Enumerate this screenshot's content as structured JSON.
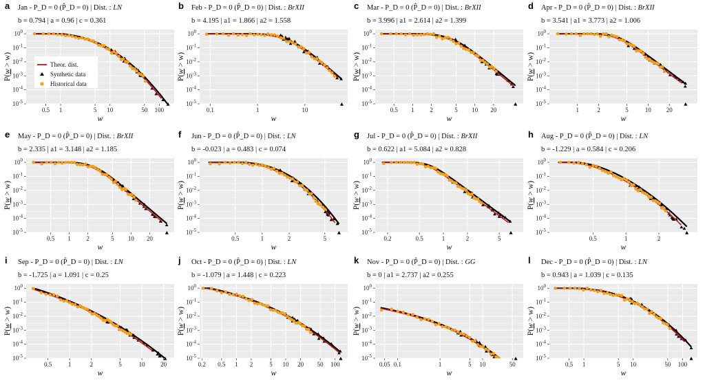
{
  "figure": {
    "ylabel_text": "P(",
    "ylabel_var": "w",
    "ylabel_rest": " > w)",
    "legend": [
      {
        "label": "Theor. dist.",
        "kind": "line",
        "color": "#c0161d"
      },
      {
        "label": "Synthetic data",
        "kind": "triangle",
        "color": "#000000"
      },
      {
        "label": "Historical data",
        "kind": "circle",
        "color": "#f0a21d"
      }
    ]
  },
  "chart_data": [
    {
      "type": "line",
      "letter": "a",
      "month": "Jan - ",
      "pd": "P_D = 0 (P̂_D = 0) |",
      "dist_label": "Dist. : ",
      "dist": "LN",
      "params": "b = 0.794 | a = 0.96 | c = 0.361",
      "xlabel": "w",
      "ylabel": "P(w > w)",
      "xscale": "log",
      "xlim": [
        0.2,
        200
      ],
      "ylim": [
        1e-05,
        2
      ],
      "xticks": [
        "0.5",
        "1",
        "5",
        "10",
        "50",
        "100"
      ],
      "xtick_values": [
        0.5,
        1,
        5,
        10,
        50,
        100
      ],
      "yticks": [
        "10^0",
        "10^-1",
        "10^-2",
        "10^-3",
        "10^-4",
        "10^-5"
      ],
      "model": {
        "family": "LN",
        "b": 0.794,
        "a": 0.96,
        "c": 0.361
      },
      "xmin": 0.28,
      "xmax_theor": 110,
      "xmax_synth": 150,
      "xmax_hist": 52
    },
    {
      "type": "line",
      "letter": "b",
      "month": "Feb - ",
      "pd": "P_D = 0 (P̂_D = 0) |",
      "dist_label": "Dist. : ",
      "dist": "BrXII",
      "params": "b = 4.195 | a1 = 1.866 | a2 = 1.558",
      "xlabel": "w",
      "ylabel": "P(w > w)",
      "xscale": "log",
      "xlim": [
        0.06,
        80
      ],
      "ylim": [
        1e-05,
        2
      ],
      "xticks": [
        "0.1",
        "1",
        "10"
      ],
      "xtick_values": [
        0.1,
        1,
        10
      ],
      "yticks": [
        "10^0",
        "10^-1",
        "10^-2",
        "10^-3",
        "10^-4",
        "10^-5"
      ],
      "model": {
        "family": "BrXII",
        "b": 4.195,
        "a1": 1.866,
        "a2": 1.558
      },
      "xmin": 0.08,
      "xmax_theor": 50,
      "xmax_synth": 60,
      "xmax_hist": 42
    },
    {
      "type": "line",
      "letter": "c",
      "month": "Mar - ",
      "pd": "P_D = 0 (P̂_D = 0) |",
      "dist_label": "Dist. : ",
      "dist": "BrXII",
      "params": "b = 3.996 | a1 = 2.614 | a2 = 1.399",
      "xlabel": "w",
      "ylabel": "P(w > w)",
      "xscale": "log",
      "xlim": [
        0.25,
        60
      ],
      "ylim": [
        1e-05,
        2
      ],
      "xticks": [
        "0.5",
        "1",
        "2",
        "5",
        "10",
        "20"
      ],
      "xtick_values": [
        0.5,
        1,
        2,
        5,
        10,
        20
      ],
      "yticks": [
        "10^0",
        "10^-1",
        "10^-2",
        "10^-3",
        "10^-4",
        "10^-5"
      ],
      "model": {
        "family": "BrXII",
        "b": 3.996,
        "a1": 2.614,
        "a2": 1.399
      },
      "xmin": 0.3,
      "xmax_theor": 42,
      "xmax_synth": 45,
      "xmax_hist": 22
    },
    {
      "type": "line",
      "letter": "d",
      "month": "Apr - ",
      "pd": "P_D = 0 (P̂_D = 0) |",
      "dist_label": "Dist. : ",
      "dist": "BrXII",
      "params": "b = 3.541 | a1 = 3.773 | a2 = 1.006",
      "xlabel": "w",
      "ylabel": "P(w > w)",
      "xscale": "log",
      "xlim": [
        0.4,
        50
      ],
      "ylim": [
        1e-05,
        2
      ],
      "xticks": [
        "1",
        "2",
        "5",
        "10",
        "20"
      ],
      "xtick_values": [
        1,
        2,
        5,
        10,
        20
      ],
      "yticks": [
        "10^0",
        "10^-1",
        "10^-2",
        "10^-3",
        "10^-4",
        "10^-5"
      ],
      "model": {
        "family": "BrXII",
        "b": 3.541,
        "a1": 3.773,
        "a2": 1.006
      },
      "xmin": 0.5,
      "xmax_theor": 30,
      "xmax_synth": 34,
      "xmax_hist": 17
    },
    {
      "type": "line",
      "letter": "e",
      "month": "May - ",
      "pd": "P_D = 0 (P̂_D = 0) |",
      "dist_label": "Dist. : ",
      "dist": "BrXII",
      "params": "b = 2.335 | a1 = 3.148 | a2 = 1.185",
      "xlabel": "w",
      "ylabel": "P(w > w)",
      "xscale": "log",
      "xlim": [
        0.2,
        50
      ],
      "ylim": [
        1e-05,
        2
      ],
      "xticks": [
        "0.5",
        "1",
        "2",
        "5",
        "10",
        "20"
      ],
      "xtick_values": [
        0.5,
        1,
        2,
        5,
        10,
        20
      ],
      "yticks": [
        "10^0",
        "10^-1",
        "10^-2",
        "10^-3",
        "10^-4",
        "10^-5"
      ],
      "model": {
        "family": "BrXII",
        "b": 2.335,
        "a1": 3.148,
        "a2": 1.185
      },
      "xmin": 0.25,
      "xmax_theor": 32,
      "xmax_synth": 38,
      "xmax_hist": 12
    },
    {
      "type": "line",
      "letter": "f",
      "month": "Jun - ",
      "pd": "P_D = 0 (P̂_D = 0) |",
      "dist_label": "Dist. : ",
      "dist": "LN",
      "params": "b = -0.023 | a = 0.483 | c = 0.074",
      "xlabel": "w",
      "ylabel": "P(w > w)",
      "xscale": "log",
      "xlim": [
        0.2,
        9
      ],
      "ylim": [
        1e-05,
        2
      ],
      "xticks": [
        "0.5",
        "1",
        "2",
        "5"
      ],
      "xtick_values": [
        0.5,
        1,
        2,
        5
      ],
      "yticks": [
        "10^0",
        "10^-1",
        "10^-2",
        "10^-3",
        "10^-4",
        "10^-5"
      ],
      "model": {
        "family": "LN",
        "b": -0.023,
        "a": 0.483,
        "c": 0.074
      },
      "xmin": 0.25,
      "xmax_theor": 6.5,
      "xmax_synth": 7.2,
      "xmax_hist": 5
    },
    {
      "type": "line",
      "letter": "g",
      "month": "Jul - ",
      "pd": "P_D = 0 (P̂_D = 0) |",
      "dist_label": "Dist. : ",
      "dist": "BrXII",
      "params": "b = 0.622 | a1 = 5.084 | a2 = 0.828",
      "xlabel": "w",
      "ylabel": "P(w > w)",
      "xscale": "log",
      "xlim": [
        0.14,
        10
      ],
      "ylim": [
        1e-05,
        2
      ],
      "xticks": [
        "0.2",
        "0.5",
        "1",
        "2",
        "5"
      ],
      "xtick_values": [
        0.2,
        0.5,
        1,
        2,
        5
      ],
      "yticks": [
        "10^0",
        "10^-1",
        "10^-2",
        "10^-3",
        "10^-4",
        "10^-5"
      ],
      "model": {
        "family": "BrXII",
        "b": 0.622,
        "a1": 5.084,
        "a2": 0.828
      },
      "xmin": 0.17,
      "xmax_theor": 6.5,
      "xmax_synth": 7,
      "xmax_hist": 3
    },
    {
      "type": "line",
      "letter": "h",
      "month": "Aug - ",
      "pd": "P_D = 0 (P̂_D = 0) |",
      "dist_label": "Dist. : ",
      "dist": "LN",
      "params": "b = -1.229 | a = 0.584 | c = 0.206",
      "xlabel": "w",
      "ylabel": "P(w > w)",
      "xscale": "log",
      "xlim": [
        0.2,
        4.5
      ],
      "ylim": [
        1e-05,
        2
      ],
      "xticks": [
        "0.5",
        "1",
        "2"
      ],
      "xtick_values": [
        0.5,
        1,
        2
      ],
      "yticks": [
        "10^0",
        "10^-1",
        "10^-2",
        "10^-3",
        "10^-4",
        "10^-5"
      ],
      "model": {
        "family": "LN",
        "b": -1.229,
        "a": 0.584,
        "c": 0.206
      },
      "xmin": 0.24,
      "xmax_theor": 3.2,
      "xmax_synth": 3.6,
      "xmax_hist": 2.3
    },
    {
      "type": "line",
      "letter": "i",
      "month": "Sep - ",
      "pd": "P_D = 0 (P̂_D = 0) |",
      "dist_label": "Dist. : ",
      "dist": "LN",
      "params": "b = -1.725 | a = 1.091 | c = 0.25",
      "xlabel": "w",
      "ylabel": "P(w > w)",
      "xscale": "log",
      "xlim": [
        0.25,
        28
      ],
      "ylim": [
        1e-05,
        2
      ],
      "xticks": [
        "0.5",
        "1",
        "2",
        "5",
        "10",
        "20"
      ],
      "xtick_values": [
        0.5,
        1,
        2,
        5,
        10,
        20
      ],
      "yticks": [
        "10^0",
        "10^-1",
        "10^-2",
        "10^-3",
        "10^-4",
        "10^-5"
      ],
      "model": {
        "family": "LN",
        "b": -1.725,
        "a": 1.091,
        "c": 0.25
      },
      "xmin": 0.3,
      "xmax_theor": 14,
      "xmax_synth": 21,
      "xmax_hist": 7
    },
    {
      "type": "line",
      "letter": "j",
      "month": "Oct - ",
      "pd": "P_D = 0 (P̂_D = 0) |",
      "dist_label": "Dist. : ",
      "dist": "LN",
      "params": "b = -1.079 | a = 1.448 | c = 0.223",
      "xlabel": "w",
      "ylabel": "P(w > w)",
      "xscale": "log",
      "xlim": [
        0.18,
        180
      ],
      "ylim": [
        1e-05,
        2
      ],
      "xticks": [
        "0.2",
        "0.5",
        "1",
        "2",
        "5",
        "10",
        "20",
        "50",
        "100"
      ],
      "xtick_values": [
        0.2,
        0.5,
        1,
        2,
        5,
        10,
        20,
        50,
        100
      ],
      "yticks": [
        "10^0",
        "10^-1",
        "10^-2",
        "10^-3",
        "10^-4",
        "10^-5"
      ],
      "model": {
        "family": "LN",
        "b": -1.079,
        "a": 1.448,
        "c": 0.223
      },
      "xmin": 0.2,
      "xmax_theor": 120,
      "xmax_synth": 130,
      "xmax_hist": 32
    },
    {
      "type": "line",
      "letter": "k",
      "month": "Nov - ",
      "pd": "P_D = 0 (P̂_D = 0) |",
      "dist_label": "Dist. : ",
      "dist": "GG",
      "params": "b = 0 | a1 = 2.737 | a2 = 0.255",
      "xlabel": "w",
      "ylabel": "P(w > w)",
      "xscale": "log",
      "xlim": [
        0.03,
        90
      ],
      "ylim": [
        1e-05,
        2
      ],
      "xticks": [
        "0.05",
        "0.1",
        "1",
        "5",
        "10",
        "50"
      ],
      "xtick_values": [
        0.05,
        0.1,
        1,
        5,
        10,
        50
      ],
      "yticks": [
        "10^0",
        "10^-1",
        "10^-2",
        "10^-3",
        "10^-4",
        "10^-5"
      ],
      "model": {
        "family": "GG",
        "b": 0,
        "a1": 2.737,
        "a2": 0.255
      },
      "xmin": 0.04,
      "xmax_theor": 55,
      "xmax_synth": 60,
      "xmax_hist": 40
    },
    {
      "type": "line",
      "letter": "l",
      "month": "Dec - ",
      "pd": "P_D = 0 (P̂_D = 0) |",
      "dist_label": "Dist. : ",
      "dist": "LN",
      "params": "b = 0.943 | a = 1.039 | c = 0.135",
      "xlabel": "w",
      "ylabel": "P(w > w)",
      "xscale": "log",
      "xlim": [
        0.2,
        200
      ],
      "ylim": [
        1e-05,
        2
      ],
      "xticks": [
        "0.5",
        "1",
        "5",
        "10",
        "50",
        "100"
      ],
      "xtick_values": [
        0.5,
        1,
        5,
        10,
        50,
        100
      ],
      "yticks": [
        "10^0",
        "10^-1",
        "10^-2",
        "10^-3",
        "10^-4",
        "10^-5"
      ],
      "model": {
        "family": "LN",
        "b": 0.943,
        "a": 1.039,
        "c": 0.135
      },
      "xmin": 0.25,
      "xmax_theor": 110,
      "xmax_synth": 150,
      "xmax_hist": 55
    }
  ]
}
